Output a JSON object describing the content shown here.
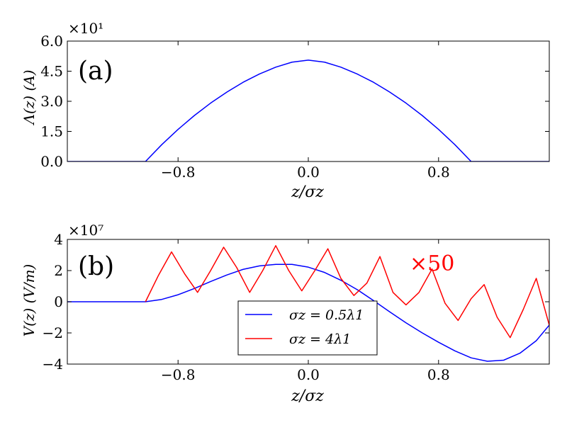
{
  "chart_data": [
    {
      "type": "line",
      "panel_label": "(a)",
      "ylabel": "Λ(z) (A)",
      "xlabel": "z/σz",
      "xlim": [
        -1.48,
        1.48
      ],
      "ylim": [
        0,
        60
      ],
      "y_exponent_label": "×10¹",
      "xticks": [
        -0.8,
        0.0,
        0.8
      ],
      "xtick_labels": [
        "−0.8",
        "0.0",
        "0.8"
      ],
      "yticks": [
        0,
        15,
        30,
        45,
        60
      ],
      "ytick_labels": [
        "0.0",
        "1.5",
        "3.0",
        "4.5",
        "6.0"
      ],
      "series": [
        {
          "color": "#0000ff",
          "x": [
            -1.48,
            -1.0,
            -0.9,
            -0.8,
            -0.7,
            -0.6,
            -0.5,
            -0.4,
            -0.3,
            -0.2,
            -0.1,
            0.0,
            0.1,
            0.2,
            0.3,
            0.4,
            0.5,
            0.6,
            0.7,
            0.8,
            0.9,
            1.0,
            1.48
          ],
          "y": [
            0,
            0,
            8.4,
            16.0,
            22.9,
            29.1,
            34.6,
            39.5,
            43.6,
            47.0,
            49.5,
            50.5,
            49.5,
            47.0,
            43.6,
            39.5,
            34.6,
            29.1,
            22.9,
            16.0,
            8.4,
            0,
            0
          ]
        }
      ]
    },
    {
      "type": "line",
      "panel_label": "(b)",
      "ylabel": "V(z) (V/m)",
      "xlabel": "z/σz",
      "xlim": [
        -1.48,
        1.48
      ],
      "ylim": [
        -4,
        4
      ],
      "y_exponent_label": "×10⁷",
      "xticks": [
        -0.8,
        0.0,
        0.8
      ],
      "xtick_labels": [
        "−0.8",
        "0.0",
        "0.8"
      ],
      "yticks": [
        -4,
        -2,
        0,
        2,
        4
      ],
      "ytick_labels": [
        "−4",
        "−2",
        "0",
        "2",
        "4"
      ],
      "annotation": "×50",
      "legend": {
        "placement": "lower-center",
        "entries": [
          "σz = 0.5λ1",
          "σz = 4λ1"
        ]
      },
      "series": [
        {
          "color": "#0000ff",
          "x": [
            -1.48,
            -1.0,
            -0.9,
            -0.8,
            -0.7,
            -0.6,
            -0.5,
            -0.4,
            -0.3,
            -0.2,
            -0.1,
            0.0,
            0.1,
            0.2,
            0.3,
            0.4,
            0.5,
            0.6,
            0.7,
            0.8,
            0.9,
            1.0,
            1.1,
            1.2,
            1.3,
            1.4,
            1.48
          ],
          "y": [
            0,
            0,
            0.15,
            0.45,
            0.85,
            1.3,
            1.72,
            2.08,
            2.3,
            2.4,
            2.4,
            2.22,
            1.88,
            1.38,
            0.78,
            0.08,
            -0.65,
            -1.35,
            -2.0,
            -2.6,
            -3.15,
            -3.6,
            -3.82,
            -3.75,
            -3.3,
            -2.5,
            -1.5
          ]
        },
        {
          "color": "#ff0000",
          "x": [
            -1.0,
            -0.92,
            -0.84,
            -0.76,
            -0.68,
            -0.6,
            -0.52,
            -0.44,
            -0.36,
            -0.28,
            -0.2,
            -0.12,
            -0.04,
            0.04,
            0.12,
            0.2,
            0.28,
            0.36,
            0.44,
            0.52,
            0.6,
            0.68,
            0.76,
            0.84,
            0.92,
            1.0,
            1.08,
            1.16,
            1.24,
            1.32,
            1.4,
            1.48
          ],
          "y": [
            0,
            1.7,
            3.2,
            1.8,
            0.6,
            2.0,
            3.5,
            2.2,
            0.6,
            2.0,
            3.6,
            2.0,
            0.7,
            2.0,
            3.4,
            1.5,
            0.4,
            1.2,
            2.9,
            0.6,
            -0.2,
            0.6,
            2.1,
            -0.1,
            -1.2,
            0.2,
            1.1,
            -1.0,
            -2.3,
            -0.5,
            1.5,
            -1.5
          ]
        }
      ]
    }
  ]
}
